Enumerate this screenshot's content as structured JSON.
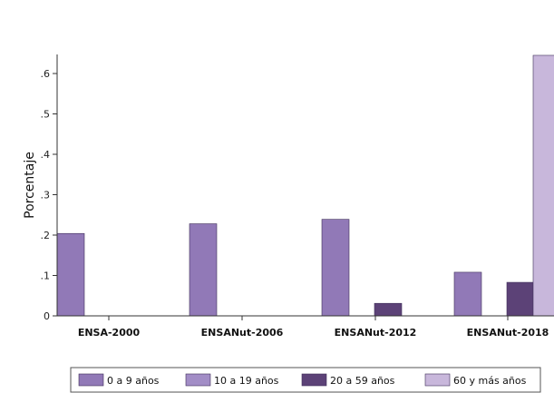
{
  "chart_data": {
    "type": "bar",
    "categories": [
      "ENSA-2000",
      "ENSANut-2006",
      "ENSANut-2012",
      "ENSANut-2018"
    ],
    "ylabel": "Porcentaje",
    "xlabel": "",
    "ylim": [
      0,
      0.65
    ],
    "yticks": [
      {
        "value": 0,
        "label": "0"
      },
      {
        "value": 0.1,
        "label": ".1"
      },
      {
        "value": 0.2,
        "label": ".2"
      },
      {
        "value": 0.3,
        "label": ".3"
      },
      {
        "value": 0.4,
        "label": ".4"
      },
      {
        "value": 0.5,
        "label": ".5"
      },
      {
        "value": 0.6,
        "label": ".6"
      }
    ],
    "legend_position": "bottom",
    "grid": false,
    "series": [
      {
        "name": "0 a 9 años",
        "color": "#9179b7",
        "values": [
          0.204,
          0.228,
          0.239,
          0.108
        ]
      },
      {
        "name": "10 a 19 años",
        "color": "#a28dc6",
        "values": [
          0,
          0,
          0,
          0
        ]
      },
      {
        "name": "20 a 59 años",
        "color": "#5c4277",
        "values": [
          0,
          0,
          0.031,
          0.083
        ]
      },
      {
        "name": "60 y más años",
        "color": "#c8b7db",
        "values": [
          0,
          0,
          0,
          0.645
        ]
      }
    ]
  }
}
